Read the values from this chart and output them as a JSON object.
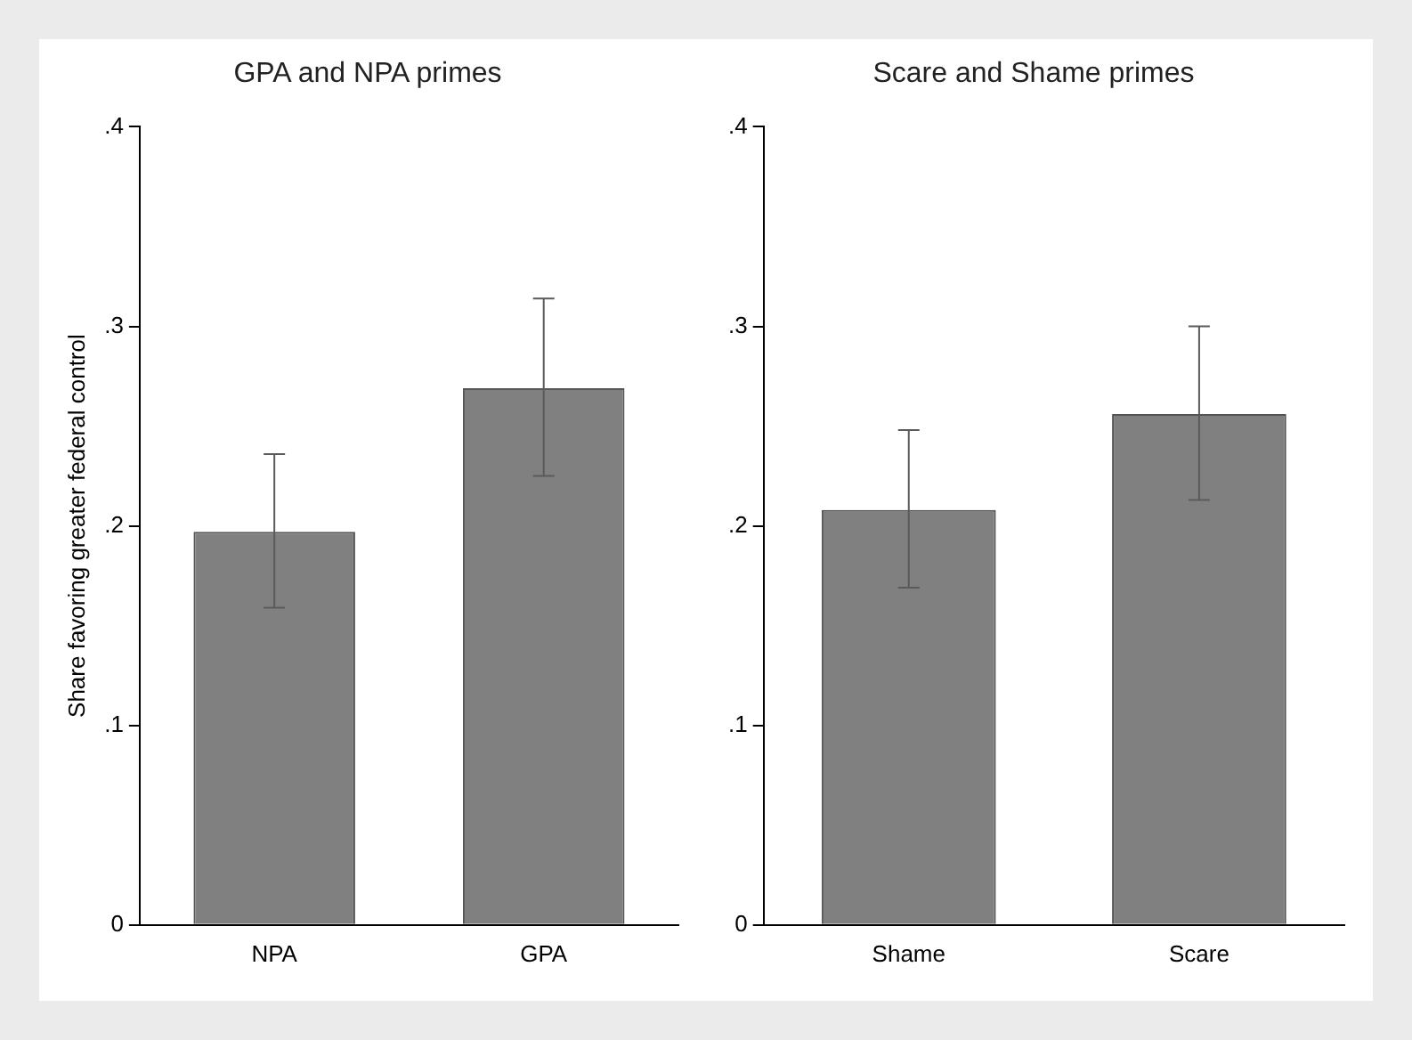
{
  "chart_data": [
    {
      "type": "bar",
      "title": "GPA and NPA primes",
      "ylabel": "Share favoring greater federal control",
      "categories": [
        "NPA",
        "GPA"
      ],
      "values": [
        0.197,
        0.269
      ],
      "color": "#808080",
      "errors": [
        [
          0.159,
          0.236
        ],
        [
          0.225,
          0.314
        ]
      ],
      "ylim": [
        0,
        0.4
      ],
      "yticks": [
        {
          "value": 0,
          "label": "0"
        },
        {
          "value": 0.1,
          "label": ".1"
        },
        {
          "value": 0.2,
          "label": ".2"
        },
        {
          "value": 0.3,
          "label": ".3"
        },
        {
          "value": 0.4,
          "label": ".4"
        }
      ],
      "grid": false,
      "legend": false
    },
    {
      "type": "bar",
      "title": "Scare and Shame primes",
      "categories": [
        "Shame",
        "Scare"
      ],
      "values": [
        0.208,
        0.256
      ],
      "color": "#808080",
      "errors": [
        [
          0.169,
          0.248
        ],
        [
          0.213,
          0.3
        ]
      ],
      "ylim": [
        0,
        0.4
      ],
      "yticks": [
        {
          "value": 0,
          "label": "0"
        },
        {
          "value": 0.1,
          "label": ".1"
        },
        {
          "value": 0.2,
          "label": ".2"
        },
        {
          "value": 0.3,
          "label": ".3"
        },
        {
          "value": 0.4,
          "label": ".4"
        }
      ],
      "grid": false,
      "legend": false
    }
  ]
}
